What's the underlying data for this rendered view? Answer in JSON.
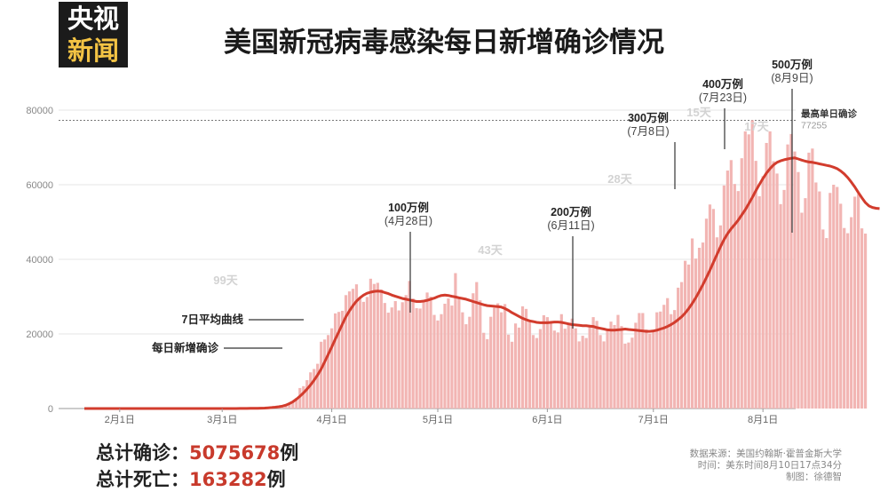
{
  "logo": {
    "line1": "央视",
    "line2": "新闻"
  },
  "title": "美国新冠病毒感染每日新增确诊情况",
  "colors": {
    "bar": "#f2b5b3",
    "line": "#d23c2d",
    "accent": "#c83a2c",
    "grid": "#e6e6e6",
    "label_gray": "#d3d3d3"
  },
  "chart_data": {
    "type": "bar",
    "x_start": "2020-01-22",
    "x_ticks": [
      "2月1日",
      "3月1日",
      "4月1日",
      "5月1日",
      "6月1日",
      "7月1日",
      "8月1日"
    ],
    "ylim": [
      0,
      80000
    ],
    "yticks": [
      0,
      20000,
      40000,
      60000,
      80000
    ],
    "series": [
      {
        "name": "每日新增确诊",
        "kind": "bar",
        "values": [
          0,
          0,
          0,
          0,
          0,
          0,
          0,
          0,
          0,
          0,
          0,
          0,
          0,
          0,
          0,
          0,
          0,
          0,
          0,
          0,
          0,
          0,
          0,
          0,
          0,
          0,
          0,
          0,
          0,
          0,
          0,
          0,
          0,
          0,
          0,
          0,
          0,
          0,
          0,
          0,
          0,
          3,
          5,
          6,
          10,
          13,
          16,
          25,
          35,
          50,
          70,
          90,
          120,
          200,
          300,
          400,
          600,
          900,
          1300,
          1700,
          2800,
          5500,
          6000,
          7600,
          9700,
          10600,
          12000,
          17900,
          18500,
          19700,
          21500,
          25500,
          25900,
          26200,
          30400,
          31400,
          32100,
          33300,
          29800,
          28600,
          29900,
          34800,
          33400,
          33700,
          31900,
          28300,
          25700,
          27100,
          28800,
          26300,
          28500,
          30400,
          34200,
          29500,
          26900,
          26800,
          28800,
          31100,
          30000,
          25100,
          23600,
          25300,
          28100,
          29500,
          27600,
          36300,
          29600,
          25800,
          22600,
          24600,
          30900,
          33900,
          29000,
          20300,
          18600,
          24600,
          27000,
          28200,
          25800,
          28000,
          19800,
          17900,
          22800,
          21700,
          27400,
          26700,
          23300,
          19700,
          18900,
          21300,
          25000,
          24500,
          22800,
          20900,
          20400,
          25300,
          21400,
          22800,
          24100,
          21500,
          18000,
          19500,
          18900,
          21800,
          24500,
          23500,
          19700,
          18000,
          21100,
          23300,
          22400,
          25100,
          22100,
          17400,
          17700,
          19000,
          23000,
          25600,
          25600,
          21200,
          20100,
          20600,
          25800,
          26000,
          27800,
          29600,
          25300,
          26400,
          32400,
          33900,
          39600,
          38600,
          45600,
          40200,
          43100,
          44500,
          50900,
          54700,
          53500,
          45900,
          49100,
          59800,
          63800,
          66600,
          60200,
          58300,
          67100,
          74300,
          73500,
          77300,
          66400,
          56900,
          62300,
          71200,
          74300,
          66300,
          63000,
          54800,
          58600,
          70800,
          73600,
          68900,
          63400,
          52500,
          56400,
          68600,
          69700,
          60600,
          58200,
          48000,
          45700,
          57800,
          60000,
          59400,
          54900,
          48400,
          47000,
          51300,
          56800,
          57500,
          48300,
          46900
        ]
      },
      {
        "name": "7日平均曲线",
        "kind": "line",
        "values": [
          0,
          0,
          0,
          0,
          0,
          0,
          0,
          0,
          0,
          0,
          0,
          0,
          0,
          0,
          0,
          0,
          0,
          0,
          0,
          0,
          0,
          0,
          0,
          0,
          0,
          0,
          0,
          0,
          0,
          0,
          0,
          0,
          0,
          0,
          0,
          0,
          0,
          0,
          0,
          0,
          0,
          5,
          7,
          10,
          15,
          20,
          30,
          40,
          55,
          70,
          100,
          130,
          180,
          250,
          350,
          480,
          650,
          900,
          1300,
          1800,
          2500,
          3300,
          4200,
          5200,
          6300,
          7600,
          9000,
          10600,
          12500,
          14500,
          16500,
          18600,
          20600,
          22600,
          24600,
          26200,
          27600,
          28800,
          29700,
          30400,
          30900,
          31200,
          31400,
          31500,
          31400,
          31100,
          30800,
          30400,
          30100,
          29800,
          29500,
          29300,
          29100,
          28900,
          28700,
          28700,
          28800,
          29000,
          29300,
          29600,
          30000,
          30300,
          30400,
          30300,
          30100,
          29900,
          29700,
          29500,
          29300,
          29000,
          28700,
          28400,
          28100,
          27800,
          27600,
          27500,
          27400,
          27300,
          27200,
          26800,
          26300,
          25700,
          25200,
          24700,
          24200,
          23800,
          23500,
          23300,
          23100,
          23000,
          23000,
          23000,
          23100,
          23200,
          23200,
          23100,
          22900,
          22700,
          22500,
          22400,
          22300,
          22200,
          22200,
          22100,
          22000,
          21700,
          21500,
          21300,
          21100,
          21000,
          21000,
          21100,
          21200,
          21300,
          21200,
          21100,
          21000,
          20900,
          20800,
          20700,
          20700,
          20800,
          21000,
          21300,
          21600,
          22000,
          22500,
          23100,
          23800,
          24600,
          25600,
          26800,
          28200,
          29700,
          31400,
          33200,
          35100,
          37100,
          39200,
          41300,
          43400,
          45300,
          46900,
          48200,
          49300,
          50500,
          51900,
          53300,
          54900,
          56600,
          58400,
          60100,
          61700,
          63100,
          64300,
          65300,
          66000,
          66400,
          66700,
          66900,
          67100,
          67200,
          66900,
          66600,
          66300,
          66100,
          66000,
          65800,
          65600,
          65400,
          65200,
          65000,
          64700,
          64300,
          63700,
          62900,
          61900,
          60700,
          59400,
          57900,
          56500,
          55200,
          54300,
          53900,
          53700,
          53600
        ]
      }
    ],
    "reference_line": {
      "value": 77255,
      "label": "最高单日确诊",
      "value_label": "77255"
    },
    "milestones": [
      {
        "label": "100万例",
        "date": "(4月28日)",
        "day": 97
      },
      {
        "label": "200万例",
        "date": "(6月11日)",
        "day": 141
      },
      {
        "label": "300万例",
        "date": "(7月8日)",
        "day": 168
      },
      {
        "label": "400万例",
        "date": "(7月23日)",
        "day": 183
      },
      {
        "label": "500万例",
        "date": "(8月9日)",
        "day": 200
      }
    ],
    "interval_labels": [
      "99天",
      "43天",
      "28天",
      "15天",
      "17天"
    ],
    "legend_callouts": [
      "7日平均曲线",
      "每日新增确诊"
    ]
  },
  "totals": {
    "confirmed_label": "总计确诊：",
    "confirmed_value": "5075678",
    "confirmed_unit": "例",
    "deaths_label": "总计死亡：",
    "deaths_value": "163282",
    "deaths_unit": "例"
  },
  "source": {
    "line1": "数据来源：美国约翰斯·霍普金斯大学",
    "line2": "时间：美东时间8月10日17点34分",
    "line3": "制图：徐德智"
  }
}
